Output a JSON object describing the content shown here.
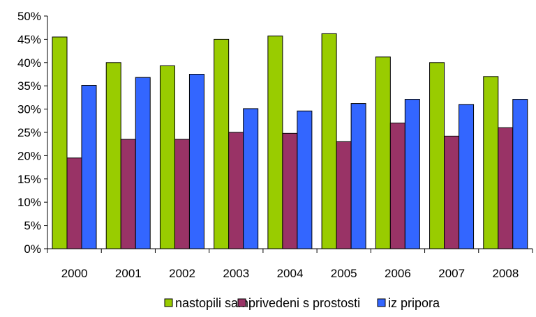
{
  "chart_data": {
    "type": "bar",
    "categories": [
      "2000",
      "2001",
      "2002",
      "2003",
      "2004",
      "2005",
      "2006",
      "2007",
      "2008"
    ],
    "series": [
      {
        "name": "nastopili sami",
        "color": "#99cc00",
        "values": [
          45.5,
          40.0,
          39.3,
          45.0,
          45.7,
          46.2,
          41.2,
          40.0,
          37.0
        ]
      },
      {
        "name": "privedeni s prostosti",
        "color": "#993366",
        "values": [
          19.5,
          23.5,
          23.5,
          25.0,
          24.8,
          23.0,
          27.0,
          24.2,
          26.0
        ]
      },
      {
        "name": "iz pripora",
        "color": "#3366ff",
        "values": [
          35.1,
          36.8,
          37.5,
          30.1,
          29.6,
          31.2,
          32.1,
          31.0,
          32.1
        ]
      }
    ],
    "ylim": [
      0,
      50
    ],
    "yticks": [
      "0%",
      "5%",
      "10%",
      "15%",
      "20%",
      "25%",
      "30%",
      "35%",
      "40%",
      "45%",
      "50%"
    ],
    "ytick_values": [
      0,
      5,
      10,
      15,
      20,
      25,
      30,
      35,
      40,
      45,
      50
    ],
    "legend_position": "bottom",
    "grid": false
  }
}
